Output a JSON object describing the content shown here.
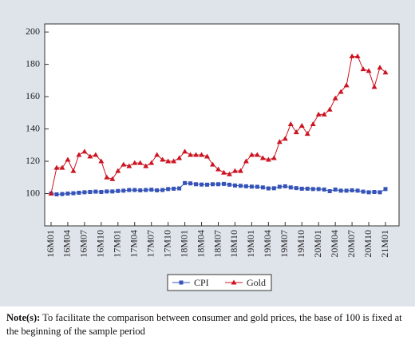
{
  "chart_data": {
    "type": "line",
    "categories": [
      "16M01",
      null,
      null,
      "16M04",
      null,
      null,
      "16M07",
      null,
      null,
      "16M10",
      null,
      null,
      "17M01",
      null,
      null,
      "17M04",
      null,
      null,
      "17M07",
      null,
      null,
      "17M10",
      null,
      null,
      "18M01",
      null,
      null,
      "18M04",
      null,
      null,
      "18M07",
      null,
      null,
      "18M10",
      null,
      null,
      "19M01",
      null,
      null,
      "19M04",
      null,
      null,
      "19M07",
      null,
      null,
      "19M10",
      null,
      null,
      "20M01",
      null,
      null,
      "20M04",
      null,
      null,
      "20M07",
      null,
      null,
      "20M10",
      null,
      null,
      "21M01"
    ],
    "series": [
      {
        "name": "CPI",
        "color": "#3553b8",
        "marker": "square",
        "values": [
          100,
          99.5,
          99.7,
          100,
          100.2,
          100.5,
          100.8,
          101,
          101.2,
          101,
          101.3,
          101.3,
          101.6,
          101.8,
          102.2,
          102.2,
          102,
          102.2,
          102.4,
          102,
          102.2,
          102.8,
          103,
          103.2,
          106.5,
          106.3,
          105.8,
          105.6,
          105.5,
          105.8,
          105.8,
          106,
          105.5,
          105,
          104.8,
          104.5,
          104.3,
          104.2,
          103.8,
          103.2,
          103.3,
          104.2,
          104.5,
          103.8,
          103.4,
          103,
          103,
          102.8,
          102.8,
          102.5,
          101.5,
          102.5,
          101.8,
          101.8,
          102,
          101.8,
          101.2,
          100.8,
          101,
          100.8,
          102.8
        ]
      },
      {
        "name": "Gold",
        "color": "#cc1421",
        "marker": "triangle",
        "values": [
          100,
          116,
          116,
          121,
          114,
          124,
          126,
          123,
          124,
          120,
          110,
          109,
          114,
          118,
          117,
          119,
          119,
          117,
          119,
          124,
          121,
          120,
          120,
          122,
          126,
          124,
          124,
          124,
          123,
          118,
          115,
          113,
          112,
          114,
          114,
          120,
          124,
          124,
          122,
          121,
          122,
          132,
          134,
          143,
          138,
          142,
          137,
          143,
          149,
          149,
          152,
          159,
          163,
          167,
          185,
          185,
          177,
          176,
          166,
          178,
          175
        ]
      }
    ],
    "ylim": [
      80,
      205
    ],
    "yticks": [
      100,
      120,
      140,
      160,
      180,
      200
    ],
    "grid": false,
    "legend": "bottom",
    "note": {
      "label": "Note(s):",
      "text": "To facilitate the comparison between consumer and gold prices, the base of 100 is fixed at the beginning of the sample period"
    }
  }
}
